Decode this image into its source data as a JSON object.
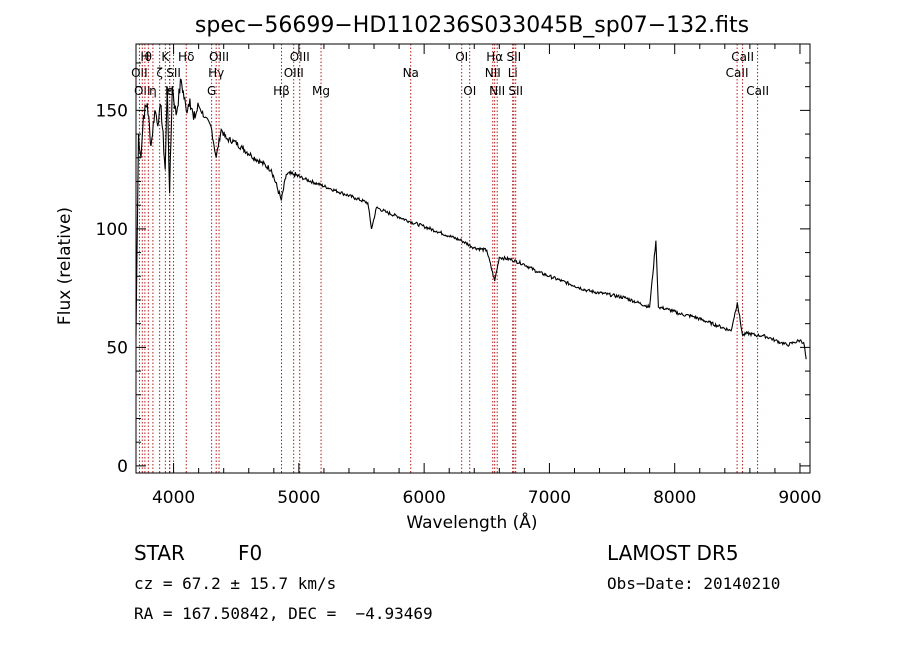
{
  "chart_data": {
    "type": "line",
    "title": "spec−56699−HD110236S033045B_sp07−132.fits",
    "xlabel": "Wavelength (Å)",
    "ylabel": "Flux (relative)",
    "xlim": [
      3700,
      9080
    ],
    "ylim": [
      -3,
      178
    ],
    "xticks": [
      4000,
      5000,
      6000,
      7000,
      8000,
      9000
    ],
    "yticks": [
      0,
      50,
      100,
      150
    ],
    "grid": false,
    "series": [
      {
        "x": [
          3700,
          3720,
          3740,
          3760,
          3790,
          3820,
          3850,
          3880,
          3900,
          3933,
          3950,
          3968,
          3990,
          4020,
          4060,
          4101,
          4130,
          4160,
          4200,
          4250,
          4300,
          4340,
          4380,
          4420,
          4480,
          4550,
          4620,
          4700,
          4780,
          4861,
          4900,
          4960,
          5050,
          5150,
          5250,
          5350,
          5450,
          5550,
          5580,
          5620,
          5700,
          5800,
          5890,
          6000,
          6100,
          6200,
          6300,
          6400,
          6500,
          6563,
          6600,
          6700,
          6800,
          6900,
          7000,
          7100,
          7200,
          7300,
          7400,
          7500,
          7600,
          7700,
          7800,
          7850,
          7870,
          7950,
          8050,
          8150,
          8250,
          8350,
          8450,
          8500,
          8542,
          8580,
          8662,
          8700,
          8760,
          8800,
          8850,
          8900,
          8950,
          9000,
          9030,
          9050
        ],
        "y": [
          55,
          140,
          130,
          148,
          153,
          135,
          150,
          145,
          152,
          125,
          160,
          115,
          160,
          148,
          163,
          150,
          155,
          146,
          152,
          147,
          143,
          130,
          142,
          138,
          137,
          134,
          131,
          128,
          125,
          112,
          123,
          123,
          121,
          119,
          117,
          115,
          113,
          111,
          100,
          109,
          107,
          105,
          103,
          101,
          99,
          97,
          95,
          92,
          91,
          78,
          88,
          87,
          85,
          82,
          80,
          78,
          76,
          74,
          73,
          72,
          71,
          69,
          67,
          95,
          67,
          66,
          64,
          63,
          61,
          59,
          57,
          69,
          55,
          56,
          55,
          55,
          54,
          53,
          52,
          51,
          52,
          53,
          52,
          45
        ]
      }
    ],
    "line_markers": [
      {
        "wl": 3727,
        "label": "OII",
        "row": 2
      },
      {
        "wl": 3750,
        "label": "OII",
        "row": 3
      },
      {
        "wl": 3771,
        "label": "H",
        "row": 1
      },
      {
        "wl": 3798,
        "label": "θ",
        "row": 1
      },
      {
        "wl": 3835,
        "label": "η",
        "row": 3
      },
      {
        "wl": 3889,
        "label": "ζ",
        "row": 2
      },
      {
        "wl": 3934,
        "label": "K",
        "row": 1
      },
      {
        "wl": 3968,
        "label": "H",
        "row": 3
      },
      {
        "wl": 3970,
        "label": "ε",
        "row": 3
      },
      {
        "wl": 4000,
        "label": "SII",
        "row": 2
      },
      {
        "wl": 4101,
        "label": "Hδ",
        "row": 1
      },
      {
        "wl": 4304,
        "label": "G",
        "row": 3
      },
      {
        "wl": 4340,
        "label": "Hγ",
        "row": 2
      },
      {
        "wl": 4363,
        "label": "OIII",
        "row": 1
      },
      {
        "wl": 4861,
        "label": "Hβ",
        "row": 3
      },
      {
        "wl": 4959,
        "label": "OIII",
        "row": 2
      },
      {
        "wl": 5007,
        "label": "OIII",
        "row": 1
      },
      {
        "wl": 5177,
        "label": "Mg",
        "row": 3
      },
      {
        "wl": 5893,
        "label": "Na",
        "row": 2
      },
      {
        "wl": 6300,
        "label": "OI",
        "row": 1
      },
      {
        "wl": 6364,
        "label": "OI",
        "row": 3
      },
      {
        "wl": 6548,
        "label": "NII",
        "row": 2
      },
      {
        "wl": 6563,
        "label": "Hα",
        "row": 1
      },
      {
        "wl": 6583,
        "label": "NII",
        "row": 3
      },
      {
        "wl": 6707,
        "label": "Li",
        "row": 2
      },
      {
        "wl": 6716,
        "label": "SII",
        "row": 1
      },
      {
        "wl": 6731,
        "label": "SII",
        "row": 3
      },
      {
        "wl": 8498,
        "label": "CaII",
        "row": 2
      },
      {
        "wl": 8542,
        "label": "CaII",
        "row": 1
      },
      {
        "wl": 8662,
        "label": "CaII",
        "row": 3
      }
    ]
  },
  "info": {
    "class_label": "STAR",
    "subclass": "F0",
    "survey": "LAMOST DR5",
    "redshift": "cz = 67.2 ± 15.7 km/s",
    "obs_date": "Obs−Date: 20140210",
    "coords": "RA = 167.50842, DEC =  −4.93469"
  },
  "colors": {
    "spectrum": "#000000",
    "marker": "#b00000",
    "axes": "#000000"
  }
}
